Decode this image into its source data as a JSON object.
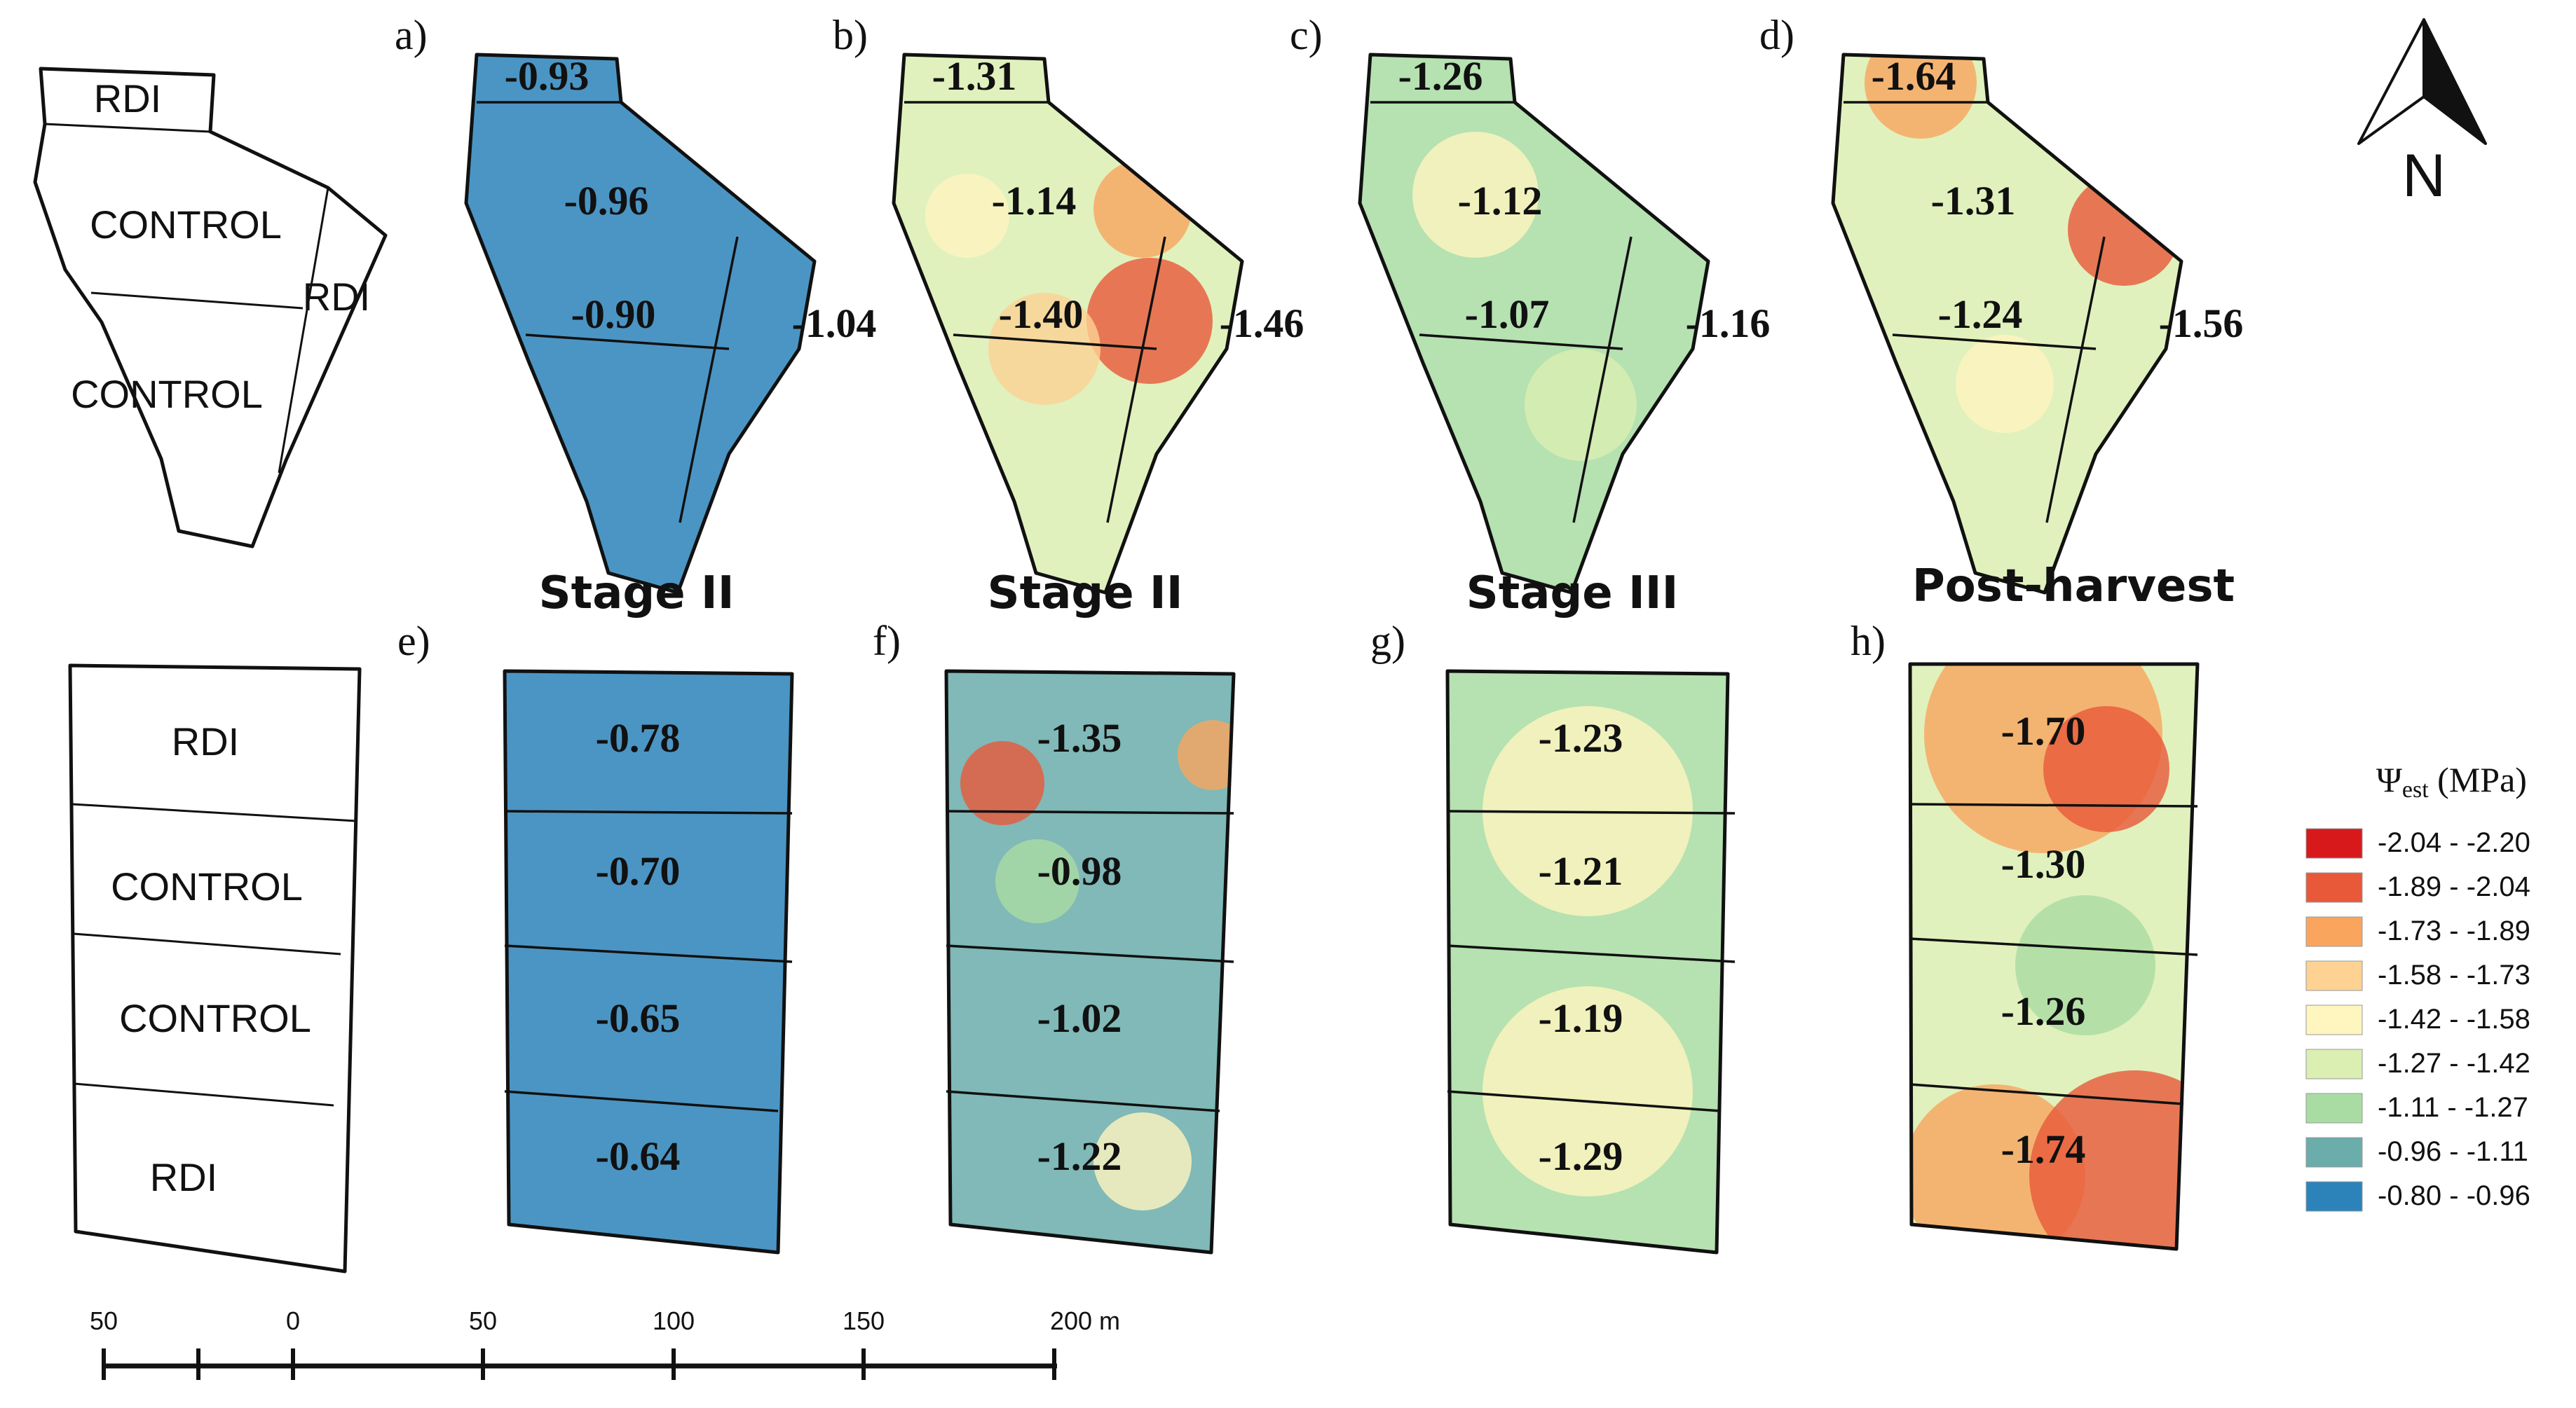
{
  "scheme_labels": {
    "top": [
      "RDI",
      "CONTROL",
      "RDI",
      "CONTROL"
    ],
    "bottom": [
      "RDI",
      "CONTROL",
      "CONTROL",
      "RDI"
    ]
  },
  "stage_titles": [
    "Stage II",
    "Stage II",
    "Stage III",
    "Post-harvest"
  ],
  "panels": [
    {
      "letter": "a)",
      "values": [
        "-0.93",
        "-0.96",
        "-0.90",
        "-1.04"
      ],
      "dominant": "-0.80 - -0.96"
    },
    {
      "letter": "b)",
      "values": [
        "-1.31",
        "-1.14",
        "-1.40",
        "-1.46"
      ],
      "dominant": "-1.27 - -1.42"
    },
    {
      "letter": "c)",
      "values": [
        "-1.26",
        "-1.12",
        "-1.07",
        "-1.16"
      ],
      "dominant": "-1.11 - -1.27"
    },
    {
      "letter": "d)",
      "values": [
        "-1.64",
        "-1.31",
        "-1.24",
        "-1.56"
      ],
      "dominant": "-1.27 - -1.42"
    },
    {
      "letter": "e)",
      "values": [
        "-0.78",
        "-0.70",
        "-0.65",
        "-0.64"
      ],
      "dominant": "-0.80 - -0.96"
    },
    {
      "letter": "f)",
      "values": [
        "-1.35",
        "-0.98",
        "-1.02",
        "-1.22"
      ],
      "dominant": "-0.96 - -1.11"
    },
    {
      "letter": "g)",
      "values": [
        "-1.23",
        "-1.21",
        "-1.19",
        "-1.29"
      ],
      "dominant": "-1.11 - -1.27"
    },
    {
      "letter": "h)",
      "values": [
        "-1.70",
        "-1.30",
        "-1.26",
        "-1.74"
      ],
      "dominant": "-1.27 - -1.42"
    }
  ],
  "legend": {
    "title_symbol": "Ψ",
    "title_sub": "est",
    "title_unit": " (MPa)",
    "classes": [
      {
        "label": "-2.04 - -2.20",
        "color": "#d7191c"
      },
      {
        "label": "-1.89 - -2.04",
        "color": "#e8593a"
      },
      {
        "label": "-1.73 - -1.89",
        "color": "#f9a55e"
      },
      {
        "label": "-1.58 - -1.73",
        "color": "#fdd293"
      },
      {
        "label": "-1.42 - -1.58",
        "color": "#fff5bf"
      },
      {
        "label": "-1.27 - -1.42",
        "color": "#dbefb2"
      },
      {
        "label": "-1.11 - -1.27",
        "color": "#a9dca3"
      },
      {
        "label": "-0.96 - -1.11",
        "color": "#6aadaa"
      },
      {
        "label": "-0.80 - -0.96",
        "color": "#2b83ba"
      }
    ]
  },
  "scale_bar": {
    "ticks": [
      "50",
      "0",
      "50",
      "100",
      "150",
      "200 m"
    ]
  },
  "north_label": "N"
}
